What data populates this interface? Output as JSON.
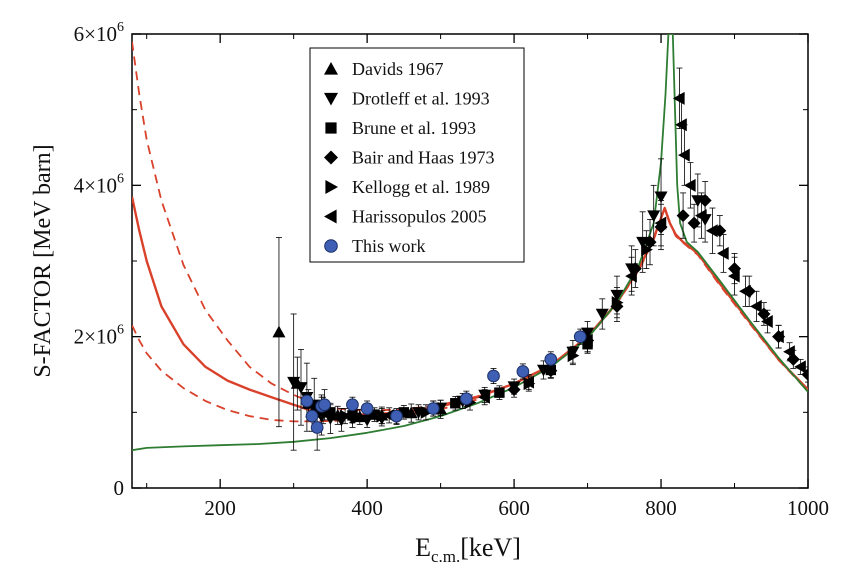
{
  "chart_data": {
    "type": "scatter",
    "xlabel": "E",
    "xlabel_sub": "c.m.",
    "xlabel_unit": "[keV]",
    "ylabel": "S-FACTOR [MeV barn]",
    "xlim": [
      80,
      1000
    ],
    "ylim": [
      0,
      6000000
    ],
    "x_ticks": [
      200,
      400,
      600,
      800,
      1000
    ],
    "y_ticks": [
      {
        "value": 0,
        "label": "0"
      },
      {
        "value": 2000000,
        "label": "2×10",
        "exp": "6"
      },
      {
        "value": 4000000,
        "label": "4×10",
        "exp": "6"
      },
      {
        "value": 6000000,
        "label": "6×10",
        "exp": "6"
      }
    ],
    "legend_position": "top-center",
    "colors": {
      "fit": "#d9412b",
      "fit_dashed": "#d9412b",
      "green": "#2e7d32",
      "this_work": "#3e5fb3",
      "data": "#000000"
    },
    "series": [
      {
        "name": "Davids 1967",
        "marker": "triangle-up",
        "points": [
          [
            280,
            2060000,
            1250000
          ],
          [
            305,
            1380000,
            350000
          ],
          [
            320,
            1120000,
            180000
          ],
          [
            340,
            1000000,
            150000
          ],
          [
            360,
            960000,
            120000
          ],
          [
            390,
            940000,
            100000
          ],
          [
            420,
            960000,
            110000
          ],
          [
            460,
            990000,
            120000
          ],
          [
            500,
            1040000,
            120000
          ]
        ]
      },
      {
        "name": "Drotleff et al. 1993",
        "marker": "triangle-down",
        "points": [
          [
            300,
            1400000,
            900000
          ],
          [
            310,
            1330000,
            500000
          ],
          [
            318,
            1200000,
            450000
          ],
          [
            328,
            1100000,
            350000
          ],
          [
            338,
            950000,
            250000
          ],
          [
            350,
            920000,
            200000
          ],
          [
            365,
            900000,
            150000
          ],
          [
            380,
            920000,
            120000
          ],
          [
            400,
            900000,
            100000
          ],
          [
            420,
            920000,
            100000
          ],
          [
            440,
            930000,
            90000
          ],
          [
            470,
            1000000,
            100000
          ],
          [
            500,
            1060000,
            100000
          ],
          [
            530,
            1150000,
            100000
          ],
          [
            560,
            1230000,
            100000
          ],
          [
            600,
            1340000,
            100000
          ],
          [
            640,
            1560000,
            120000
          ],
          [
            680,
            1800000,
            150000
          ],
          [
            700,
            2050000,
            150000
          ],
          [
            720,
            2300000,
            200000
          ],
          [
            740,
            2550000,
            250000
          ],
          [
            760,
            2900000,
            300000
          ],
          [
            775,
            3250000,
            400000
          ],
          [
            790,
            3600000,
            400000
          ],
          [
            800,
            3850000,
            500000
          ],
          [
            850,
            3800000,
            350000
          ],
          [
            860,
            3550000,
            300000
          ]
        ]
      },
      {
        "name": "Brune et al. 1993",
        "marker": "square",
        "points": [
          [
            350,
            1000000,
            100000
          ],
          [
            380,
            960000,
            90000
          ],
          [
            410,
            970000,
            90000
          ],
          [
            450,
            1000000,
            90000
          ],
          [
            520,
            1120000,
            90000
          ],
          [
            580,
            1260000,
            90000
          ],
          [
            650,
            1560000,
            100000
          ],
          [
            700,
            1900000,
            120000
          ]
        ]
      },
      {
        "name": "Bair and Haas 1973",
        "marker": "diamond",
        "points": [
          [
            600,
            1300000,
            100000
          ],
          [
            650,
            1550000,
            100000
          ],
          [
            700,
            1950000,
            150000
          ],
          [
            740,
            2400000,
            200000
          ],
          [
            765,
            2900000,
            250000
          ],
          [
            785,
            3250000,
            300000
          ],
          [
            800,
            3450000,
            300000
          ],
          [
            830,
            3600000,
            300000
          ],
          [
            845,
            3500000,
            250000
          ],
          [
            860,
            3800000,
            250000
          ],
          [
            880,
            3400000,
            200000
          ],
          [
            900,
            2900000,
            200000
          ],
          [
            920,
            2600000,
            200000
          ],
          [
            940,
            2300000,
            150000
          ],
          [
            960,
            2000000,
            150000
          ],
          [
            980,
            1700000,
            120000
          ],
          [
            1000,
            1500000,
            100000
          ]
        ]
      },
      {
        "name": "Kellogg et al. 1989",
        "marker": "triangle-right",
        "points": [
          [
            330,
            1050000,
            100000
          ],
          [
            370,
            950000,
            100000
          ],
          [
            420,
            950000,
            100000
          ],
          [
            480,
            1000000,
            100000
          ],
          [
            540,
            1130000,
            100000
          ],
          [
            620,
            1380000,
            100000
          ],
          [
            680,
            1750000,
            120000
          ],
          [
            740,
            2450000,
            200000
          ],
          [
            780,
            3150000,
            250000
          ]
        ]
      },
      {
        "name": "Harissopulos 2005",
        "marker": "triangle-left",
        "points": [
          [
            340,
            1050000,
            150000
          ],
          [
            380,
            960000,
            100000
          ],
          [
            430,
            960000,
            100000
          ],
          [
            490,
            1050000,
            100000
          ],
          [
            560,
            1200000,
            100000
          ],
          [
            620,
            1400000,
            100000
          ],
          [
            700,
            1950000,
            150000
          ],
          [
            760,
            2800000,
            250000
          ],
          [
            800,
            3500000,
            300000
          ],
          [
            825,
            5150000,
            400000
          ],
          [
            828,
            4800000,
            400000
          ],
          [
            832,
            4400000,
            400000
          ],
          [
            840,
            4000000,
            300000
          ],
          [
            855,
            3600000,
            300000
          ],
          [
            870,
            3400000,
            300000
          ],
          [
            885,
            3100000,
            250000
          ],
          [
            900,
            2800000,
            250000
          ],
          [
            915,
            2600000,
            200000
          ],
          [
            930,
            2400000,
            200000
          ],
          [
            945,
            2200000,
            150000
          ],
          [
            960,
            2000000,
            150000
          ],
          [
            975,
            1800000,
            120000
          ],
          [
            990,
            1600000,
            100000
          ]
        ]
      },
      {
        "name": "This work",
        "marker": "circle",
        "points": [
          [
            318,
            1150000,
            100000
          ],
          [
            325,
            950000,
            200000
          ],
          [
            332,
            800000,
            300000
          ],
          [
            338,
            1080000,
            150000
          ],
          [
            342,
            1100000,
            200000
          ],
          [
            380,
            1100000,
            100000
          ],
          [
            400,
            1050000,
            100000
          ],
          [
            440,
            950000,
            100000
          ],
          [
            490,
            1050000,
            100000
          ],
          [
            535,
            1180000,
            100000
          ],
          [
            572,
            1480000,
            100000
          ],
          [
            612,
            1540000,
            100000
          ],
          [
            650,
            1700000,
            100000
          ],
          [
            690,
            2000000,
            100000
          ]
        ]
      }
    ],
    "curves": [
      {
        "style": "solid-red",
        "points": [
          [
            80,
            3850000
          ],
          [
            90,
            3400000
          ],
          [
            100,
            3000000
          ],
          [
            120,
            2400000
          ],
          [
            150,
            1900000
          ],
          [
            180,
            1600000
          ],
          [
            210,
            1420000
          ],
          [
            240,
            1300000
          ],
          [
            270,
            1200000
          ],
          [
            300,
            1100000
          ],
          [
            330,
            1000000
          ],
          [
            360,
            970000
          ],
          [
            400,
            970000
          ],
          [
            450,
            1000000
          ],
          [
            500,
            1080000
          ],
          [
            550,
            1200000
          ],
          [
            600,
            1380000
          ],
          [
            650,
            1620000
          ],
          [
            700,
            2000000
          ],
          [
            740,
            2450000
          ],
          [
            770,
            2900000
          ],
          [
            790,
            3300000
          ],
          [
            805,
            3700000
          ],
          [
            812,
            3500000
          ],
          [
            820,
            3350000
          ],
          [
            830,
            3250000
          ],
          [
            850,
            3100000
          ],
          [
            880,
            2700000
          ],
          [
            920,
            2200000
          ],
          [
            960,
            1700000
          ],
          [
            1000,
            1300000
          ]
        ]
      },
      {
        "style": "dashed-red-upper",
        "points": [
          [
            80,
            5900000
          ],
          [
            90,
            5200000
          ],
          [
            100,
            4600000
          ],
          [
            120,
            3800000
          ],
          [
            150,
            2950000
          ],
          [
            180,
            2350000
          ],
          [
            210,
            1950000
          ],
          [
            240,
            1600000
          ],
          [
            270,
            1380000
          ],
          [
            300,
            1230000
          ],
          [
            330,
            1110000
          ],
          [
            360,
            1050000
          ],
          [
            400,
            1020000
          ],
          [
            450,
            1040000
          ],
          [
            500,
            1100000
          ],
          [
            550,
            1210000
          ],
          [
            600,
            1380000
          ],
          [
            650,
            1620000
          ],
          [
            700,
            2000000
          ],
          [
            740,
            2450000
          ],
          [
            770,
            2900000
          ],
          [
            790,
            3300000
          ],
          [
            805,
            3700000
          ],
          [
            812,
            3500000
          ],
          [
            820,
            3350000
          ],
          [
            830,
            3250000
          ],
          [
            850,
            3100000
          ],
          [
            880,
            2700000
          ],
          [
            920,
            2200000
          ],
          [
            960,
            1700000
          ],
          [
            1000,
            1300000
          ]
        ]
      },
      {
        "style": "dashed-red-lower",
        "points": [
          [
            80,
            2150000
          ],
          [
            90,
            1950000
          ],
          [
            100,
            1780000
          ],
          [
            120,
            1550000
          ],
          [
            150,
            1320000
          ],
          [
            180,
            1150000
          ],
          [
            210,
            1030000
          ],
          [
            240,
            950000
          ],
          [
            270,
            900000
          ],
          [
            300,
            880000
          ],
          [
            330,
            880000
          ],
          [
            360,
            890000
          ],
          [
            400,
            910000
          ],
          [
            450,
            960000
          ],
          [
            500,
            1040000
          ],
          [
            550,
            1170000
          ],
          [
            600,
            1360000
          ],
          [
            650,
            1600000
          ],
          [
            700,
            1980000
          ],
          [
            740,
            2440000
          ],
          [
            770,
            2880000
          ],
          [
            790,
            3280000
          ],
          [
            805,
            3700000
          ],
          [
            812,
            3500000
          ],
          [
            820,
            3330000
          ],
          [
            830,
            3240000
          ],
          [
            850,
            3080000
          ],
          [
            880,
            2680000
          ],
          [
            920,
            2180000
          ],
          [
            960,
            1690000
          ],
          [
            1000,
            1280000
          ]
        ]
      },
      {
        "style": "solid-green",
        "points": [
          [
            80,
            500000
          ],
          [
            100,
            530000
          ],
          [
            150,
            550000
          ],
          [
            200,
            565000
          ],
          [
            250,
            580000
          ],
          [
            300,
            610000
          ],
          [
            350,
            660000
          ],
          [
            400,
            730000
          ],
          [
            450,
            820000
          ],
          [
            500,
            950000
          ],
          [
            550,
            1120000
          ],
          [
            600,
            1330000
          ],
          [
            650,
            1600000
          ],
          [
            700,
            1980000
          ],
          [
            740,
            2450000
          ],
          [
            770,
            2950000
          ],
          [
            790,
            3500000
          ],
          [
            800,
            4300000
          ],
          [
            806,
            5200000
          ],
          [
            810,
            6000000
          ],
          [
            816,
            6000000
          ],
          [
            819,
            5000000
          ],
          [
            822,
            4000000
          ],
          [
            826,
            3500000
          ],
          [
            835,
            3250000
          ],
          [
            850,
            3120000
          ],
          [
            880,
            2740000
          ],
          [
            920,
            2220000
          ],
          [
            960,
            1720000
          ],
          [
            1000,
            1270000
          ]
        ]
      }
    ]
  }
}
